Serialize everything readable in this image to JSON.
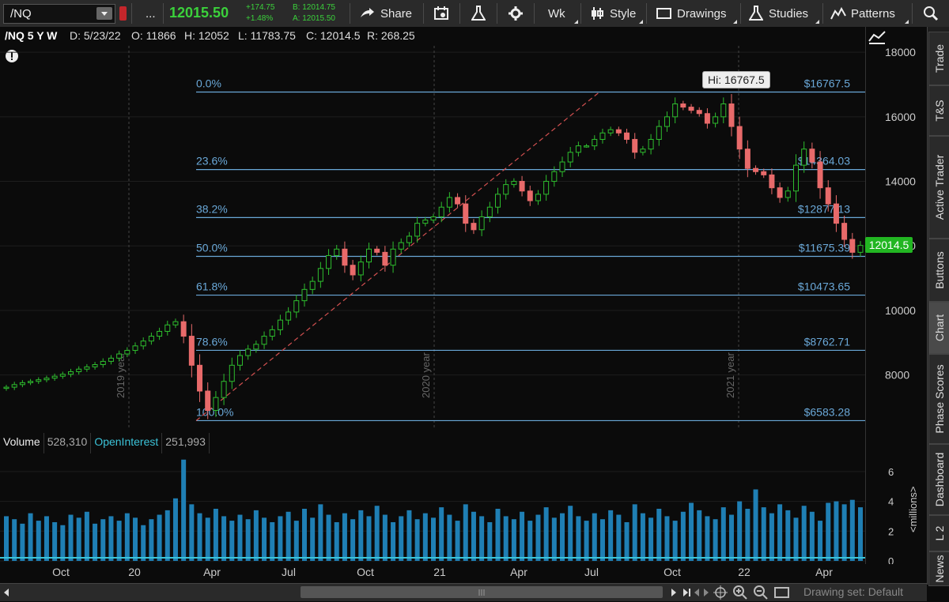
{
  "toolbar": {
    "symbol": "/NQ",
    "more_label": "...",
    "last_price": "12015.50",
    "change_abs": "+174.75",
    "change_pct": "+1.48%",
    "bid": "B: 12014.75",
    "ask": "A: 12015.50",
    "share_label": "Share",
    "period_label": "Wk",
    "style_label": "Style",
    "drawings_label": "Drawings",
    "studies_label": "Studies",
    "patterns_label": "Patterns"
  },
  "infobar": {
    "symbol_period": "/NQ 5 Y W",
    "date": "D: 5/23/22",
    "open": "O: 11866",
    "high": "H: 12052",
    "low": "L: 11783.75",
    "close": "C: 12014.5",
    "range": "R: 268.25"
  },
  "fib_levels": [
    {
      "pct": "0.0%",
      "price": "$16767.5",
      "value": 16767.5
    },
    {
      "pct": "23.6%",
      "price": "$14364.03",
      "value": 14364.03
    },
    {
      "pct": "38.2%",
      "price": "$12877.13",
      "value": 12877.13
    },
    {
      "pct": "50.0%",
      "price": "$11675.39",
      "value": 11675.39
    },
    {
      "pct": "61.8%",
      "price": "$10473.65",
      "value": 10473.65
    },
    {
      "pct": "78.6%",
      "price": "$8762.71",
      "value": 8762.71
    },
    {
      "pct": "100.0%",
      "price": "$6583.28",
      "value": 6583.28
    }
  ],
  "hi_label": "Hi: 16767.5",
  "last_label": "12014.5",
  "price_axis": {
    "ticks": [
      "18000",
      "16000",
      "14000",
      "12000",
      "10000",
      "8000"
    ],
    "values": [
      18000,
      16000,
      14000,
      12000,
      10000,
      8000
    ],
    "min": 6300,
    "max": 18200
  },
  "year_markers": [
    "2019 year",
    "2020 year",
    "2021 year"
  ],
  "volume": {
    "label": "Volume",
    "value": "528,310",
    "oi_label": "OpenInterest",
    "oi_value": "251,993",
    "axis_ticks": [
      "6",
      "4",
      "2",
      "0"
    ],
    "axis_values": [
      6,
      4,
      2,
      0
    ],
    "unit_label": "<millions>"
  },
  "x_axis": {
    "labels": [
      "Oct",
      "20",
      "Apr",
      "Jul",
      "Oct",
      "21",
      "Apr",
      "Jul",
      "Oct",
      "22",
      "Apr"
    ]
  },
  "sidebar": {
    "tabs": [
      "Trade",
      "T&S",
      "Active Trader",
      "Buttons",
      "Chart",
      "Phase Scores",
      "Dashboard",
      "L 2",
      "News"
    ],
    "active": "Chart"
  },
  "scroll": {
    "drawing_set": "Drawing set: Default"
  },
  "colors": {
    "up": "#2ebd2e",
    "down": "#e86a6a",
    "fib": "#6aa8d8",
    "volume": "#1f7fb4",
    "trend": "#d25050"
  },
  "chart_data": {
    "type": "candlestick",
    "title": "/NQ 5 Y W",
    "closes": [
      7620,
      7700,
      7760,
      7800,
      7850,
      7900,
      7960,
      8020,
      8100,
      8180,
      8250,
      8320,
      8420,
      8520,
      8650,
      8760,
      8900,
      9050,
      9200,
      9350,
      9550,
      9650,
      9200,
      8300,
      7500,
      6900,
      7300,
      7800,
      8300,
      8600,
      8800,
      8950,
      9200,
      9400,
      9700,
      9950,
      10300,
      10650,
      10900,
      11300,
      11700,
      11900,
      11400,
      11100,
      11500,
      11900,
      11800,
      11400,
      11900,
      12100,
      12300,
      12700,
      12800,
      12900,
      13200,
      13500,
      13300,
      12700,
      12500,
      12900,
      13200,
      13600,
      13900,
      14000,
      13700,
      13400,
      13600,
      14000,
      14300,
      14600,
      14900,
      15100,
      15100,
      15300,
      15500,
      15600,
      15500,
      15300,
      14900,
      15000,
      15300,
      15700,
      16000,
      16400,
      16300,
      16200,
      16100,
      15800,
      16000,
      16400,
      15700,
      15000,
      14400,
      14300,
      14200,
      13800,
      13500,
      13700,
      14500,
      15000,
      14600,
      13800,
      13300,
      12700,
      12200,
      11800,
      12014.5
    ],
    "hi": 16767.5,
    "last": 12014.5,
    "volume_millions": [
      3,
      2.8,
      2.5,
      3.2,
      2.7,
      3,
      2.6,
      2.4,
      3.1,
      2.9,
      3.3,
      2.5,
      2.8,
      3,
      2.7,
      3.2,
      2.9,
      2.4,
      2.8,
      3.1,
      3.4,
      4.2,
      6.8,
      3.8,
      3.2,
      2.9,
      3.5,
      3,
      2.7,
      3.1,
      2.8,
      3.4,
      2.9,
      2.6,
      3,
      3.3,
      2.7,
      3.5,
      2.9,
      3.8,
      3.1,
      2.6,
      3.2,
      2.8,
      3.4,
      3,
      3.7,
      3.1,
      2.6,
      3,
      3.4,
      2.8,
      3.2,
      2.9,
      3.6,
      3.1,
      2.7,
      3.8,
      3.3,
      3,
      2.6,
      3.5,
      3,
      2.8,
      3.3,
      2.7,
      3.1,
      3.6,
      2.9,
      3.2,
      3.7,
      3,
      2.7,
      3.2,
      2.8,
      3.4,
      3.1,
      2.6,
      3.8,
      3.2,
      2.9,
      3.5,
      3,
      2.7,
      3.3,
      3.9,
      3.4,
      3,
      2.8,
      3.6,
      3.1,
      4,
      3.5,
      4.8,
      3.6,
      3.2,
      3.8,
      3.4,
      2.9,
      3.7,
      3.3,
      2.7,
      3.9,
      4,
      3.8,
      4.1,
      3.6
    ]
  }
}
